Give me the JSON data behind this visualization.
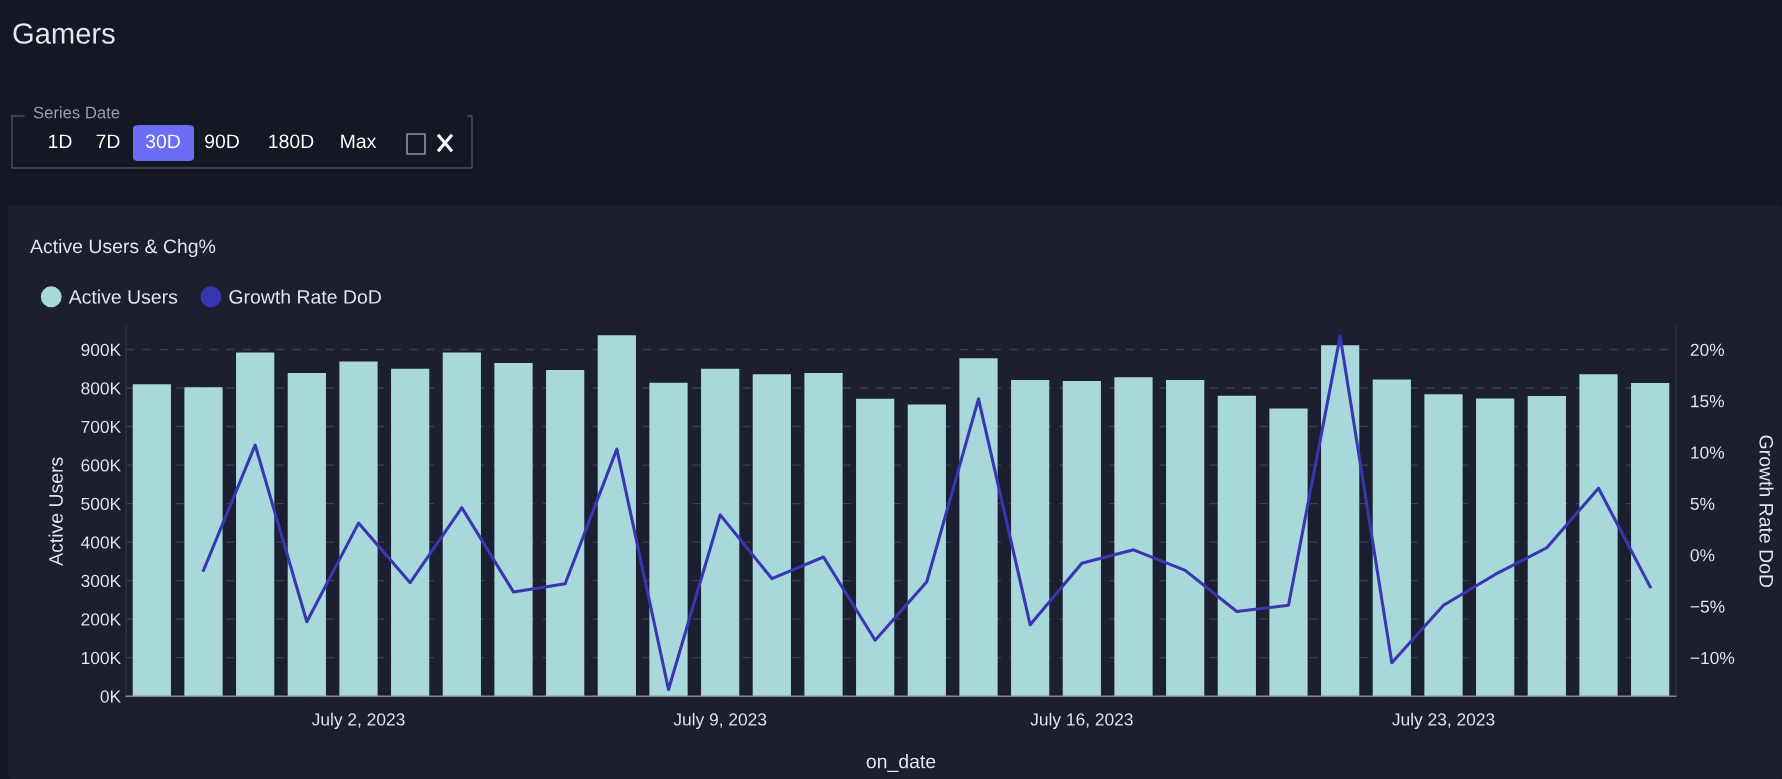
{
  "chart_data": {
    "type": "bar",
    "title": "Gamers",
    "subtitle": "Active Users & Chg%",
    "annotations": [
      "Series Date",
      "1D",
      "7D",
      "30D",
      "90D",
      "180D",
      "Max"
    ],
    "xlabel": "on_date",
    "ylabel": "Active Users",
    "y2label": "Growth Rate DoD",
    "categories": [
      null,
      null,
      null,
      null,
      "July 2, 2023",
      null,
      null,
      null,
      null,
      null,
      null,
      "July 9, 2023",
      null,
      null,
      null,
      null,
      null,
      null,
      "July 16, 2023",
      null,
      null,
      null,
      null,
      null,
      null,
      "July 23, 2023",
      null,
      null,
      null,
      null
    ],
    "series": [
      {
        "name": "Active Users",
        "color": "#a8d8da",
        "values": [
          810000,
          802000,
          892000,
          839000,
          869000,
          850000,
          892000,
          865000,
          847000,
          937000,
          814000,
          850000,
          836000,
          839000,
          772000,
          757000,
          877000,
          821000,
          818000,
          828000,
          821000,
          780000,
          747000,
          911000,
          822000,
          784000,
          773000,
          779000,
          836000,
          813000
        ]
      },
      {
        "name": "Growth Rate DoD",
        "type": "line",
        "axis": "y2",
        "color": "#3a35b0",
        "values": [
          null,
          -1.5,
          10.7,
          -6.5,
          3.1,
          -2.7,
          4.6,
          -3.6,
          -2.8,
          10.3,
          -13.1,
          3.9,
          -2.3,
          -0.2,
          -8.3,
          -2.6,
          15.2,
          -6.8,
          -0.8,
          0.5,
          -1.5,
          -5.5,
          -4.9,
          21.3,
          -10.5,
          -4.9,
          -1.9,
          0.7,
          6.5,
          -3.1
        ]
      }
    ],
    "ylim": [
      0,
      960000
    ],
    "yticks": [
      {
        "value": 0,
        "label": "0K"
      },
      {
        "value": 100000,
        "label": "100K"
      },
      {
        "value": 200000,
        "label": "200K"
      },
      {
        "value": 300000,
        "label": "300K"
      },
      {
        "value": 400000,
        "label": "400K"
      },
      {
        "value": 500000,
        "label": "500K"
      },
      {
        "value": 600000,
        "label": "600K"
      },
      {
        "value": 700000,
        "label": "700K"
      },
      {
        "value": 800000,
        "label": "800K"
      },
      {
        "value": 900000,
        "label": "900K"
      }
    ],
    "y2lim": [
      -13.75,
      22.25
    ],
    "y2ticks": [
      {
        "value": -10,
        "label": "−10%"
      },
      {
        "value": -5,
        "label": "−5%"
      },
      {
        "value": 0,
        "label": "0%"
      },
      {
        "value": 5,
        "label": "5%"
      },
      {
        "value": 10,
        "label": "10%"
      },
      {
        "value": 15,
        "label": "15%"
      },
      {
        "value": 20,
        "label": "20%"
      }
    ],
    "grid": "y",
    "legend": "top left",
    "marker": "none",
    "line_style": "solid"
  }
}
